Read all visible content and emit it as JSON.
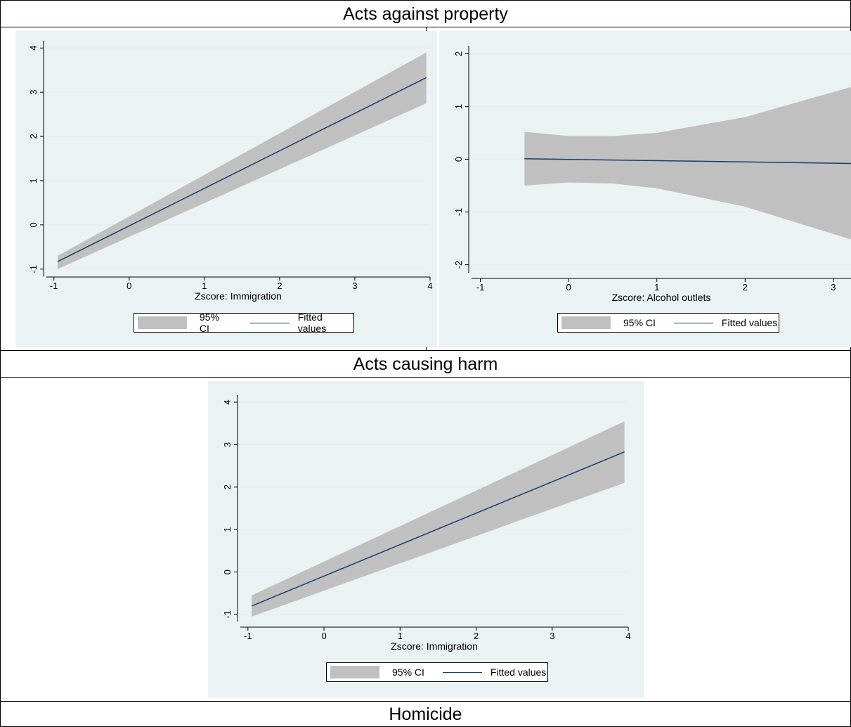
{
  "titles": {
    "row1": "Acts against property",
    "row2": "Acts causing harm",
    "row3": "Homicide"
  },
  "legend": {
    "ci": "95% CI",
    "fit": "Fitted values"
  },
  "colors": {
    "ci_fill": "#c0c0c0",
    "fit_line": "#1a3d6e",
    "plot_bg": "#eaf2f3",
    "grid": "#e6ecee"
  },
  "chart_data": [
    {
      "type": "area",
      "xlabel": "Zscore:  Immigration",
      "ylabel": "",
      "xlim": [
        -1.1,
        4.0
      ],
      "ylim": [
        -1.1,
        4.1
      ],
      "xticks": [
        -1,
        0,
        1,
        2,
        3,
        4
      ],
      "yticks": [
        -1,
        0,
        1,
        2,
        3,
        4
      ],
      "grid": true,
      "legend_position": "bottom",
      "series": [
        {
          "name": "95% CI",
          "x": [
            -0.95,
            3.95
          ],
          "lower": [
            -1.0,
            2.75
          ],
          "upper": [
            -0.7,
            3.9
          ]
        },
        {
          "name": "Fitted values",
          "x": [
            -0.95,
            3.95
          ],
          "y": [
            -0.83,
            3.33
          ]
        }
      ]
    },
    {
      "type": "area",
      "xlabel": "Zscore:  Alcohol outlets",
      "ylabel": "",
      "xlim": [
        -1.1,
        3.2
      ],
      "ylim": [
        -2.1,
        2.1
      ],
      "xticks": [
        -1,
        0,
        1,
        2,
        3
      ],
      "yticks": [
        -2,
        -1,
        0,
        1,
        2
      ],
      "grid": true,
      "legend_position": "bottom",
      "series": [
        {
          "name": "95% CI",
          "x": [
            -0.5,
            0.0,
            0.5,
            1.0,
            2.0,
            3.2
          ],
          "lower": [
            -0.5,
            -0.44,
            -0.46,
            -0.55,
            -0.9,
            -1.52
          ],
          "upper": [
            0.52,
            0.44,
            0.44,
            0.5,
            0.8,
            1.37
          ]
        },
        {
          "name": "Fitted values",
          "x": [
            -0.5,
            3.2
          ],
          "y": [
            0.01,
            -0.08
          ]
        }
      ]
    },
    {
      "type": "area",
      "xlabel": "Zscore:  Immigration",
      "ylabel": "",
      "xlim": [
        -1.1,
        4.0
      ],
      "ylim": [
        -1.1,
        4.1
      ],
      "xticks": [
        -1,
        0,
        1,
        2,
        3,
        4
      ],
      "yticks": [
        -1,
        0,
        1,
        2,
        3,
        4
      ],
      "grid": true,
      "legend_position": "bottom",
      "series": [
        {
          "name": "95% CI",
          "x": [
            -0.95,
            3.95
          ],
          "lower": [
            -1.05,
            2.1
          ],
          "upper": [
            -0.55,
            3.55
          ]
        },
        {
          "name": "Fitted values",
          "x": [
            -0.95,
            3.95
          ],
          "y": [
            -0.8,
            2.83
          ]
        }
      ]
    }
  ]
}
